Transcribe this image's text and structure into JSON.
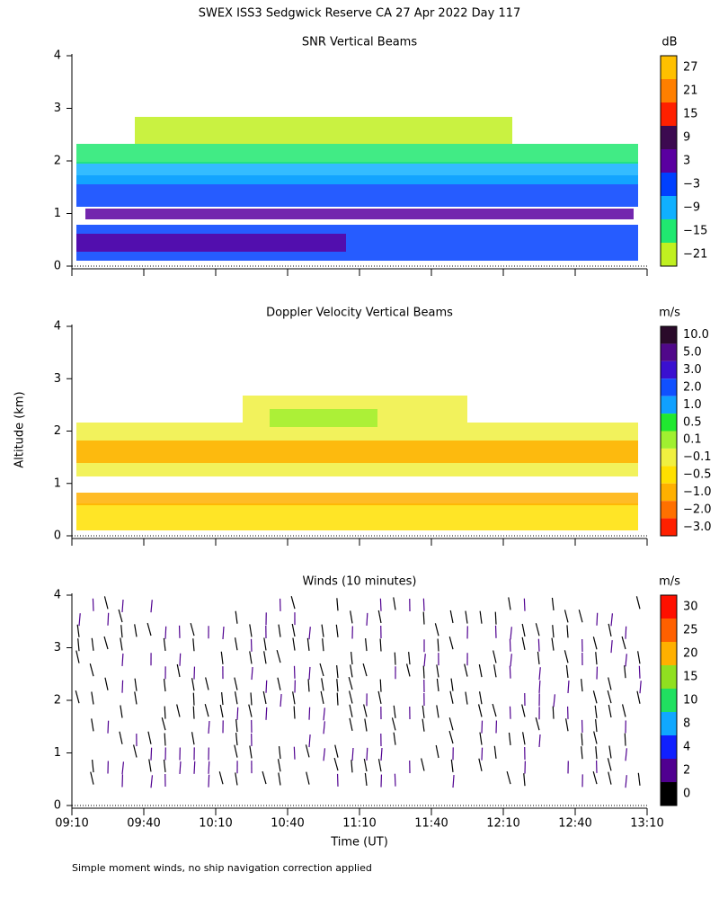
{
  "chart_data": {
    "type": "profiler",
    "title": "SWEX ISS3 Sedgwick Reserve CA  27 Apr 2022 Day 117",
    "ylabel": "Altitude (km)",
    "xlabel": "Time (UT)",
    "categories": [
      "09:10",
      "09:40",
      "10:10",
      "10:40",
      "11:10",
      "11:40",
      "12:10",
      "12:40",
      "13:10"
    ],
    "footnote": "Simple moment winds, no ship navigation correction applied",
    "panels": [
      {
        "title": "SNR Vertical Beams",
        "unit": "dB",
        "ylim": [
          0,
          4
        ],
        "yticks": [
          0,
          1,
          2,
          3,
          4
        ],
        "colorbar": {
          "labels": [
            "27",
            "21",
            "15",
            "9",
            "3",
            "−3",
            "−9",
            "−15",
            "−21"
          ],
          "colors": [
            "#ffc000",
            "#ff7f00",
            "#ff2000",
            "#3c0a50",
            "#5a00a0",
            "#0040ff",
            "#10b0ff",
            "#20e870",
            "#c0f020"
          ]
        }
      },
      {
        "title": "Doppler Velocity Vertical Beams",
        "unit": "m/s",
        "ylim": [
          0,
          4
        ],
        "yticks": [
          0,
          1,
          2,
          3,
          4
        ],
        "colorbar": {
          "labels": [
            "10.0",
            "5.0",
            "3.0",
            "2.0",
            "1.0",
            "0.5",
            "0.1",
            "−0.1",
            "−0.5",
            "−1.0",
            "−2.0",
            "−3.0"
          ],
          "colors": [
            "#2a0a2a",
            "#50088a",
            "#3a10d0",
            "#1050ff",
            "#10a0ff",
            "#20e830",
            "#a0f030",
            "#f0f040",
            "#ffe000",
            "#ffb000",
            "#ff7000",
            "#ff2000"
          ]
        }
      },
      {
        "title": "Winds (10 minutes)",
        "unit": "m/s",
        "ylim": [
          0,
          4
        ],
        "yticks": [
          0,
          1,
          2,
          3,
          4
        ],
        "colorbar": {
          "labels": [
            "30",
            "25",
            "20",
            "15",
            "10",
            "8",
            "4",
            "2",
            "0"
          ],
          "colors": [
            "#ff1000",
            "#ff6000",
            "#ffb000",
            "#90e020",
            "#20e060",
            "#10a8ff",
            "#1020ff",
            "#500090",
            "#000000"
          ]
        }
      }
    ]
  }
}
